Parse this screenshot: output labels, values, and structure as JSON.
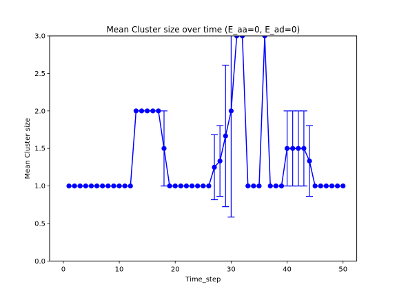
{
  "chart_data": {
    "type": "line",
    "title": "Mean Cluster size over time (E_aa=0, E_ad=0)",
    "xlabel": "Time_step",
    "ylabel": "Mean Cluster size",
    "xlim": [
      -2.45,
      52.45
    ],
    "ylim": [
      0.0,
      3.0
    ],
    "xticks": [
      0,
      10,
      20,
      30,
      40,
      50
    ],
    "yticks": [
      0.0,
      0.5,
      1.0,
      1.5,
      2.0,
      2.5,
      3.0
    ],
    "grid": false,
    "legend": "none",
    "color": "#0000ff",
    "marker": "circle",
    "series": [
      {
        "x": [
          1,
          2,
          3,
          4,
          5,
          6,
          7,
          8,
          9,
          10,
          11,
          12,
          13,
          14,
          15,
          16,
          17,
          18,
          19,
          20,
          21,
          22,
          23,
          24,
          25,
          26,
          27,
          28,
          29,
          30,
          31,
          32,
          33,
          34,
          35,
          36,
          37,
          38,
          39,
          40,
          41,
          42,
          43,
          44,
          45,
          46,
          47,
          48,
          49,
          50
        ],
        "y": [
          1.0,
          1.0,
          1.0,
          1.0,
          1.0,
          1.0,
          1.0,
          1.0,
          1.0,
          1.0,
          1.0,
          1.0,
          2.0,
          2.0,
          2.0,
          2.0,
          2.0,
          1.5,
          1.0,
          1.0,
          1.0,
          1.0,
          1.0,
          1.0,
          1.0,
          1.0,
          1.25,
          1.333,
          1.667,
          2.0,
          3.0,
          3.0,
          1.0,
          1.0,
          1.0,
          3.0,
          1.0,
          1.0,
          1.0,
          1.5,
          1.5,
          1.5,
          1.5,
          1.333,
          1.0,
          1.0,
          1.0,
          1.0,
          1.0,
          1.0
        ],
        "err": [
          0,
          0,
          0,
          0,
          0,
          0,
          0,
          0,
          0,
          0,
          0,
          0,
          0,
          0,
          0,
          0,
          0,
          0.5,
          0,
          0,
          0,
          0,
          0,
          0,
          0,
          0,
          0.433,
          0.471,
          0.943,
          1.414,
          0,
          0,
          0,
          0,
          0,
          0,
          0,
          0,
          0,
          0.5,
          0.5,
          0.5,
          0.5,
          0.471,
          0,
          0,
          0,
          0,
          0,
          0
        ]
      }
    ]
  }
}
